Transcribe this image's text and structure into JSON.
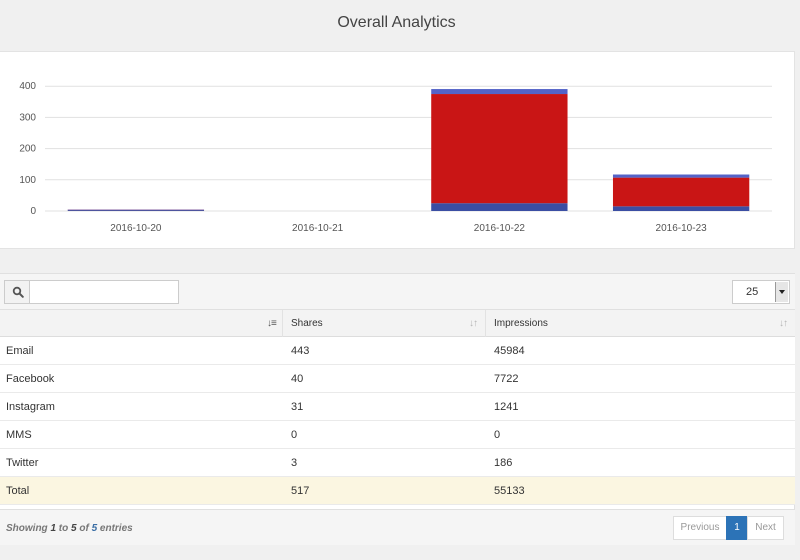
{
  "page": {
    "title": "Overall Analytics"
  },
  "chart_data": {
    "type": "bar",
    "stacked": true,
    "categories": [
      "2016-10-20",
      "2016-10-21",
      "2016-10-22",
      "2016-10-23"
    ],
    "yticks": [
      0,
      100,
      200,
      300,
      400
    ],
    "ylim": [
      0,
      420
    ],
    "grid": true,
    "series": [
      {
        "color": "#3b4ea3",
        "values": [
          3,
          0,
          25,
          15
        ]
      },
      {
        "color": "#c91515",
        "values": [
          1,
          0,
          350,
          92
        ]
      },
      {
        "color": "#5463c8",
        "values": [
          1,
          0,
          16,
          10
        ]
      }
    ]
  },
  "table": {
    "search_value": "",
    "page_length": "25",
    "columns": [
      "",
      "Shares",
      "Impressions"
    ],
    "rows": [
      [
        "Email",
        "443",
        "45984"
      ],
      [
        "Facebook",
        "40",
        "7722"
      ],
      [
        "Instagram",
        "31",
        "1241"
      ],
      [
        "MMS",
        "0",
        "0"
      ],
      [
        "Twitter",
        "3",
        "186"
      ]
    ],
    "total": [
      "Total",
      "517",
      "55133"
    ],
    "info": {
      "prefix": "Showing ",
      "from": "1",
      "to_word": " to ",
      "to": "5",
      "of_word": " of ",
      "count": "5",
      "suffix": " entries"
    },
    "pagination": {
      "previous": "Previous",
      "current": "1",
      "next": "Next"
    }
  },
  "icons": {
    "search": "search-icon",
    "sort_asc": "sort-ascending-icon",
    "sort_both": "sort-both-icon",
    "dropdown": "caret-down-icon"
  }
}
